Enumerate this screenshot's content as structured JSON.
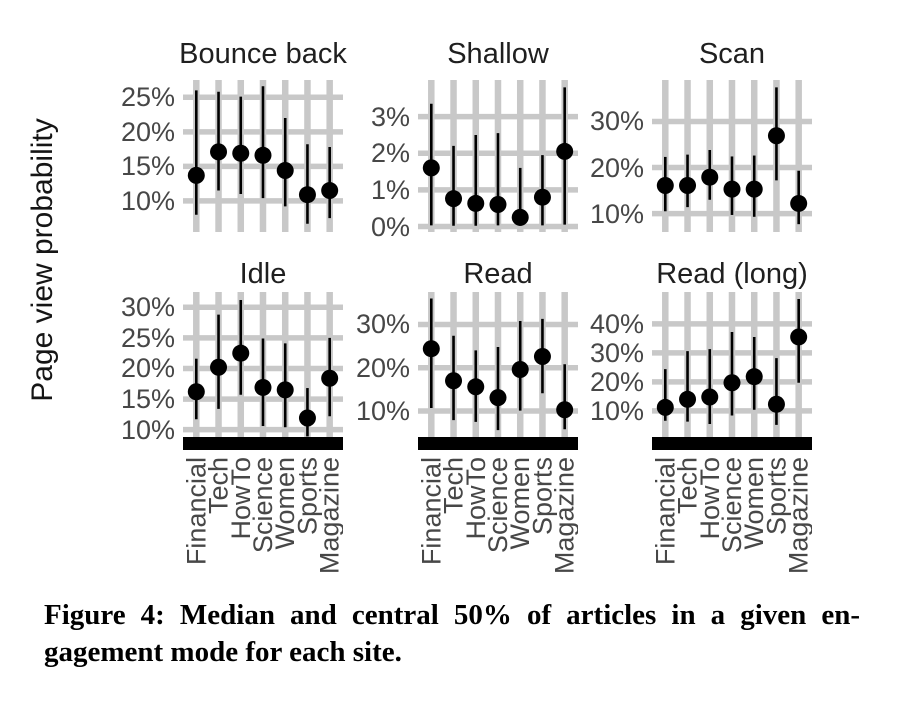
{
  "caption": {
    "lines": [
      "Figure 4: Median and central 50% of articles in a given en-",
      "gagement mode for each site."
    ]
  },
  "chart_data": {
    "type": "pointrange",
    "description": "Median (dot) and central 50% interval (vertical segment) of articles per engagement mode, faceted into 6 panels over 7 sites",
    "ylabel": "Page view probability",
    "categories": [
      "Financial",
      "Tech",
      "HowTo",
      "Science",
      "Women",
      "Sports",
      "Magazine"
    ],
    "x_tick_rotation": 90,
    "tick_suffix": "%",
    "grid": true,
    "legend": "none",
    "colors": {
      "grid": "#c8c8c8",
      "point": "#000000",
      "range_line": "#000000",
      "axis_bar": "#000000",
      "tick_label": "#474747",
      "panel_title": "#1f1f1f"
    },
    "panels": [
      {
        "title": "Bounce back",
        "row": 0,
        "yticks": [
          10,
          15,
          20,
          25
        ],
        "ylim": [
          5.5,
          27.5
        ],
        "median": [
          13.7,
          17.1,
          16.9,
          16.6,
          14.4,
          10.9,
          11.5
        ],
        "lower": [
          8.0,
          11.5,
          11.0,
          10.4,
          9.2,
          6.7,
          7.5
        ],
        "upper": [
          26.0,
          25.8,
          25.1,
          26.6,
          22.0,
          18.2,
          17.8
        ]
      },
      {
        "title": "Shallow",
        "row": 0,
        "yticks": [
          0,
          1,
          2,
          3
        ],
        "ylim": [
          -0.15,
          4.0
        ],
        "median": [
          1.6,
          0.76,
          0.63,
          0.6,
          0.25,
          0.8,
          2.05
        ],
        "lower": [
          0.03,
          0.02,
          0.02,
          0.03,
          0.02,
          0.03,
          0.05
        ],
        "upper": [
          3.35,
          2.2,
          2.5,
          2.55,
          1.6,
          1.95,
          3.8
        ]
      },
      {
        "title": "Scan",
        "row": 0,
        "yticks": [
          10,
          20,
          30
        ],
        "ylim": [
          6,
          39
        ],
        "median": [
          16.1,
          16.1,
          17.9,
          15.3,
          15.3,
          26.9,
          12.2
        ],
        "lower": [
          10.5,
          11.4,
          13.0,
          9.7,
          9.3,
          17.2,
          7.7
        ],
        "upper": [
          22.3,
          22.8,
          23.8,
          22.4,
          22.6,
          37.4,
          19.3
        ]
      },
      {
        "title": "Idle",
        "row": 1,
        "yticks": [
          10,
          15,
          20,
          25,
          30
        ],
        "ylim": [
          8.8,
          32.5
        ],
        "median": [
          16.2,
          20.2,
          22.5,
          16.9,
          16.5,
          11.9,
          18.4
        ],
        "lower": [
          11.7,
          13.4,
          15.7,
          10.6,
          10.4,
          8.9,
          12.2
        ],
        "upper": [
          21.6,
          28.8,
          31.2,
          24.9,
          24.1,
          16.8,
          25.0
        ]
      },
      {
        "title": "Read",
        "row": 1,
        "yticks": [
          10,
          20,
          30
        ],
        "ylim": [
          4,
          37.5
        ],
        "median": [
          24.4,
          17.0,
          15.6,
          13.1,
          19.6,
          22.6,
          10.3
        ],
        "lower": [
          10.7,
          7.9,
          7.5,
          5.6,
          10.1,
          14.1,
          5.8
        ],
        "upper": [
          36.0,
          27.4,
          24.0,
          24.8,
          30.8,
          31.3,
          20.8
        ]
      },
      {
        "title": "Read (long)",
        "row": 1,
        "yticks": [
          10,
          20,
          30,
          40
        ],
        "ylim": [
          1,
          51
        ],
        "median": [
          11.2,
          14.0,
          14.8,
          19.7,
          21.8,
          12.3,
          35.5
        ],
        "lower": [
          6.6,
          6.3,
          5.5,
          8.4,
          10.4,
          5.2,
          19.7
        ],
        "upper": [
          24.4,
          30.6,
          31.3,
          37.2,
          35.5,
          28.2,
          48.6
        ]
      }
    ]
  }
}
